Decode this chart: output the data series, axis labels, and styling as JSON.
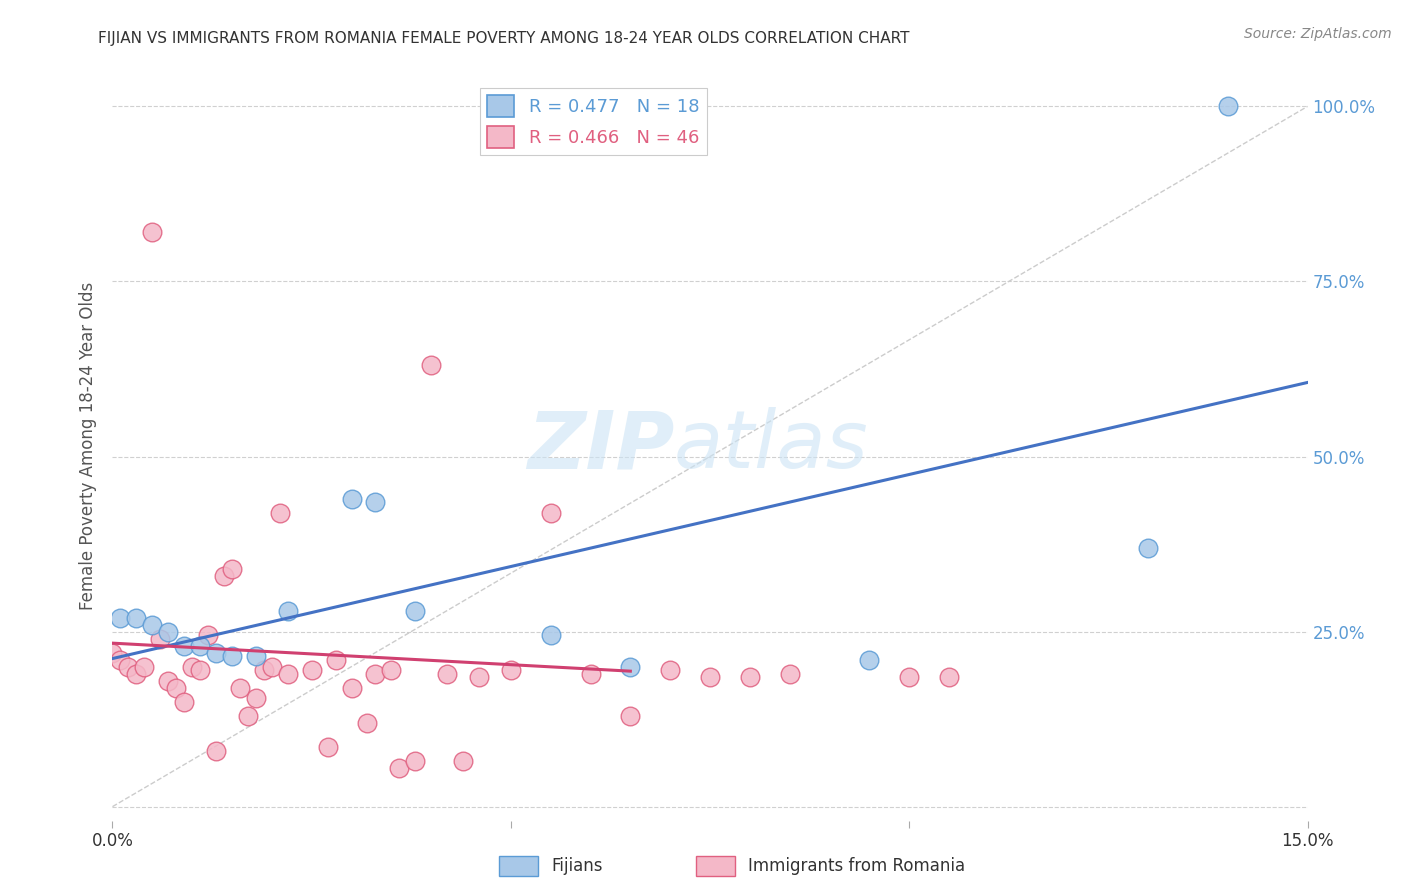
{
  "title": "FIJIAN VS IMMIGRANTS FROM ROMANIA FEMALE POVERTY AMONG 18-24 YEAR OLDS CORRELATION CHART",
  "source": "Source: ZipAtlas.com",
  "ylabel": "Female Poverty Among 18-24 Year Olds",
  "xlim": [
    0.0,
    0.15
  ],
  "ylim": [
    -0.02,
    1.05
  ],
  "yticks": [
    0.0,
    0.25,
    0.5,
    0.75,
    1.0
  ],
  "ytick_labels": [
    "",
    "25.0%",
    "50.0%",
    "75.0%",
    "100.0%"
  ],
  "xticks": [
    0.0,
    0.05,
    0.1,
    0.15
  ],
  "xtick_labels": [
    "0.0%",
    "",
    "",
    "15.0%"
  ],
  "legend_label1": "R = 0.477   N = 18",
  "legend_label2": "R = 0.466   N = 46",
  "legend_color1": "#a8c8e8",
  "legend_color2": "#f4b8c8",
  "fijian_color": "#a8c8e8",
  "romania_color": "#f4b8c8",
  "fijian_edge_color": "#5b9bd5",
  "romania_edge_color": "#e06080",
  "trendline_fijian_color": "#4472c4",
  "trendline_romania_color": "#d04070",
  "watermark_zip": "ZIP",
  "watermark_atlas": "atlas",
  "fijian_x": [
    0.001,
    0.003,
    0.005,
    0.007,
    0.009,
    0.011,
    0.013,
    0.015,
    0.018,
    0.022,
    0.03,
    0.033,
    0.038,
    0.055,
    0.065,
    0.095,
    0.13,
    0.14
  ],
  "fijian_y": [
    0.27,
    0.27,
    0.26,
    0.25,
    0.23,
    0.23,
    0.22,
    0.215,
    0.215,
    0.28,
    0.44,
    0.435,
    0.28,
    0.245,
    0.2,
    0.21,
    0.37,
    1.0
  ],
  "romania_x": [
    0.0,
    0.001,
    0.002,
    0.003,
    0.004,
    0.005,
    0.006,
    0.007,
    0.008,
    0.009,
    0.01,
    0.011,
    0.012,
    0.013,
    0.014,
    0.015,
    0.016,
    0.017,
    0.018,
    0.019,
    0.02,
    0.021,
    0.022,
    0.025,
    0.027,
    0.028,
    0.03,
    0.032,
    0.033,
    0.035,
    0.036,
    0.038,
    0.04,
    0.042,
    0.044,
    0.046,
    0.05,
    0.055,
    0.06,
    0.065,
    0.07,
    0.075,
    0.08,
    0.085,
    0.1,
    0.105
  ],
  "romania_y": [
    0.22,
    0.21,
    0.2,
    0.19,
    0.2,
    0.82,
    0.24,
    0.18,
    0.17,
    0.15,
    0.2,
    0.195,
    0.245,
    0.08,
    0.33,
    0.34,
    0.17,
    0.13,
    0.155,
    0.195,
    0.2,
    0.42,
    0.19,
    0.195,
    0.085,
    0.21,
    0.17,
    0.12,
    0.19,
    0.195,
    0.055,
    0.065,
    0.63,
    0.19,
    0.065,
    0.185,
    0.195,
    0.42,
    0.19,
    0.13,
    0.195,
    0.185,
    0.185,
    0.19,
    0.185,
    0.185
  ],
  "trendline_romania_xstart": 0.0,
  "trendline_romania_xend": 0.065,
  "trendline_fijian_xstart": 0.0,
  "trendline_fijian_xend": 0.15
}
